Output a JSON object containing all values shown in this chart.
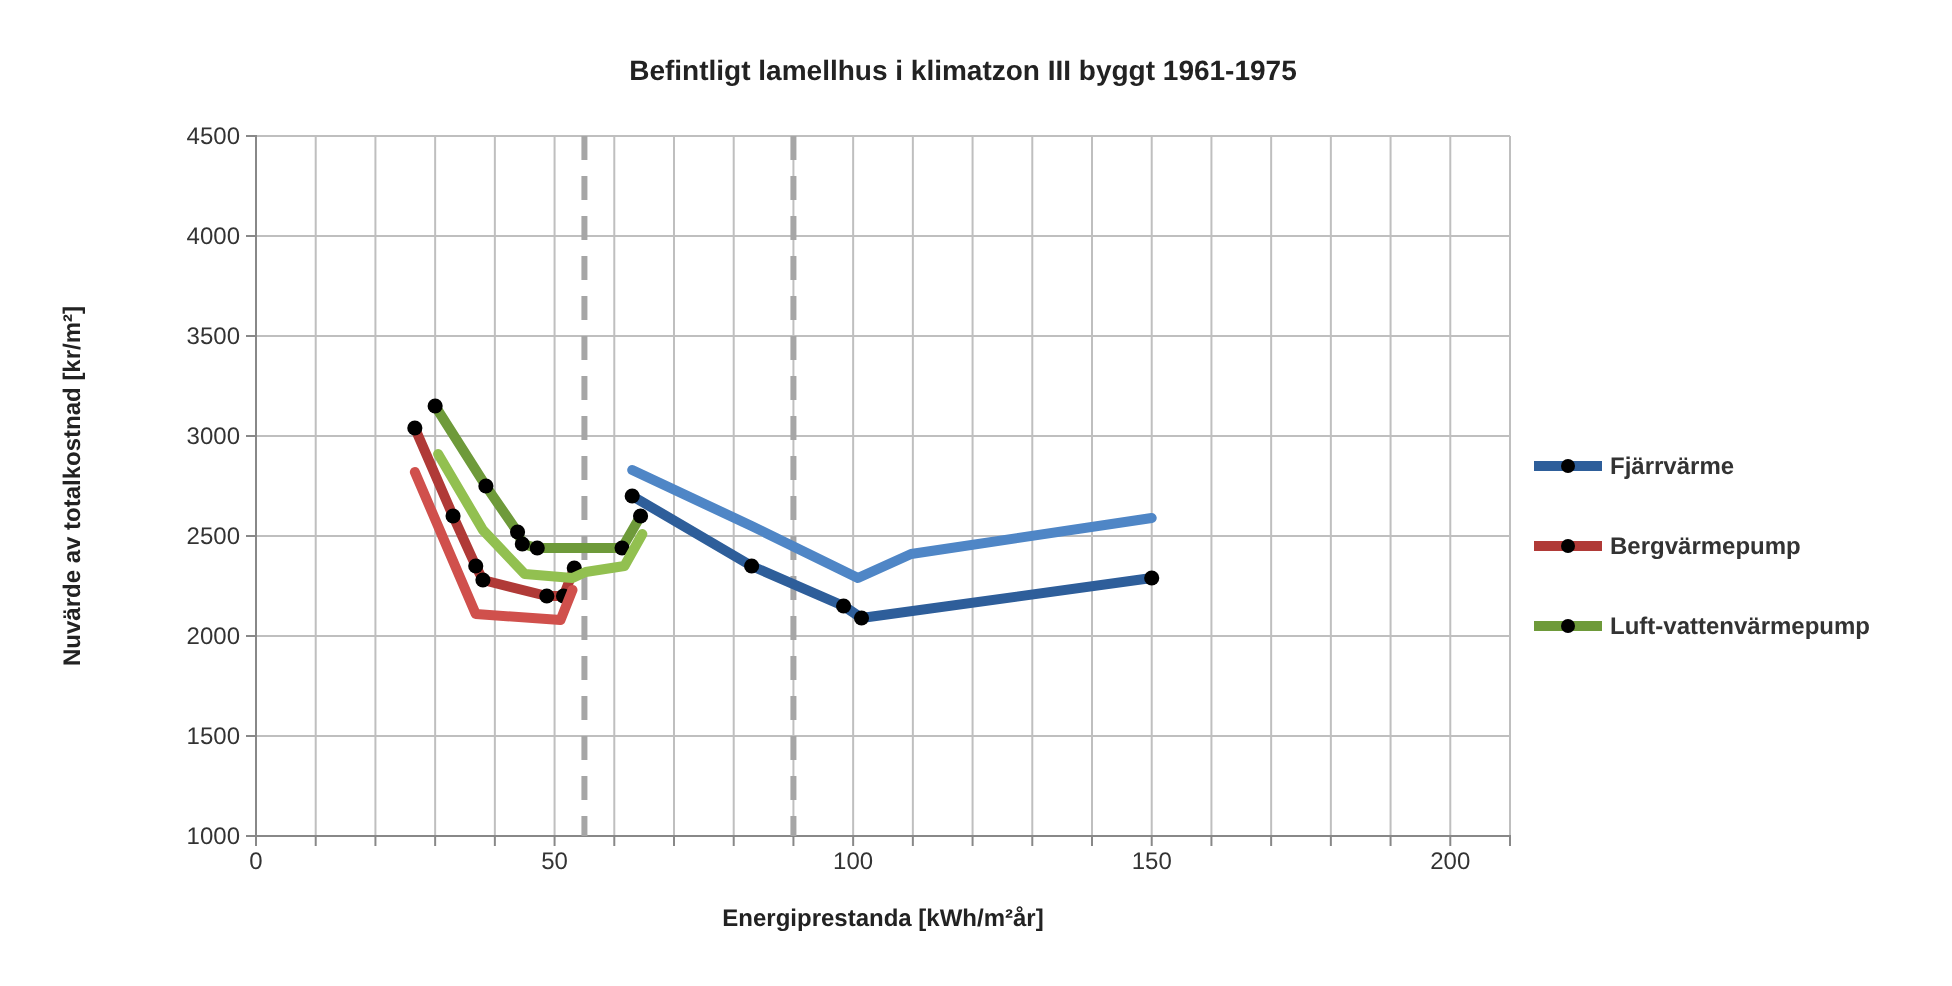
{
  "chart_data": {
    "type": "line",
    "title": "Befintligt lamellhus i klimatzon III byggt 1961-1975",
    "xlabel": "Energiprestanda [kWh/m²år]",
    "ylabel": "Nuvärde av totalkostnad [kr/m²]",
    "xlim": [
      0,
      210
    ],
    "xticks": [
      0,
      {
        "value": 10,
        "label": null
      },
      {
        "value": 20,
        "label": null
      },
      {
        "value": 30,
        "label": null
      },
      {
        "value": 40,
        "label": null
      },
      50,
      {
        "value": 60,
        "label": null
      },
      {
        "value": 70,
        "label": null
      },
      {
        "value": 80,
        "label": null
      },
      {
        "value": 90,
        "label": null
      },
      100,
      {
        "value": 110,
        "label": null
      },
      {
        "value": 120,
        "label": null
      },
      {
        "value": 130,
        "label": null
      },
      {
        "value": 140,
        "label": null
      },
      150,
      {
        "value": 160,
        "label": null
      },
      {
        "value": 170,
        "label": null
      },
      {
        "value": 180,
        "label": null
      },
      {
        "value": 190,
        "label": null
      },
      200,
      {
        "value": 210,
        "label": null
      }
    ],
    "ylim": [
      1000,
      4500
    ],
    "yticks": [
      1000,
      1500,
      2000,
      2500,
      3000,
      3500,
      4000,
      4500
    ],
    "grid": true,
    "legend": "right",
    "ref_lines": [
      {
        "axis": "x",
        "value": 55,
        "color": "#a6a6a6",
        "line_style": "dashed"
      },
      {
        "axis": "x",
        "value": 90,
        "color": "#a6a6a6",
        "line_style": "dashed"
      }
    ],
    "series": [
      {
        "name": "Fjärrvärme",
        "color": "#2e5e9a",
        "marker": "circle",
        "x": [
          63,
          83,
          98.4,
          101.4,
          150
        ],
        "values": [
          2700,
          2350,
          2150,
          2090,
          2290
        ]
      },
      {
        "color": "#4f86c6",
        "marker": "none",
        "x": [
          63,
          83,
          100.8,
          109.7,
          150
        ],
        "values": [
          2830,
          2550,
          2290,
          2410,
          2590
        ]
      },
      {
        "name": "Bergvärmepump",
        "color": "#b03a37",
        "marker": "circle",
        "x": [
          26.6,
          33,
          36.8,
          38,
          48.7,
          51.5,
          53.3
        ],
        "values": [
          3040,
          2600,
          2350,
          2280,
          2200,
          2200,
          2340
        ]
      },
      {
        "color": "#d0504c",
        "marker": "none",
        "x": [
          26.6,
          36.8,
          51,
          53
        ],
        "values": [
          2820,
          2110,
          2080,
          2230
        ]
      },
      {
        "name": "Luft-vattenvärmepump",
        "color": "#6e9a3a",
        "marker": "circle",
        "x": [
          30,
          38.5,
          43.8,
          44.6,
          47.1,
          61.3,
          64.4
        ],
        "values": [
          3150,
          2750,
          2520,
          2460,
          2440,
          2440,
          2600
        ]
      },
      {
        "color": "#92c050",
        "marker": "none",
        "x": [
          30.5,
          38,
          45,
          53,
          55.2,
          61.7,
          64.7
        ],
        "values": [
          2910,
          2530,
          2310,
          2290,
          2320,
          2350,
          2510
        ]
      }
    ]
  }
}
